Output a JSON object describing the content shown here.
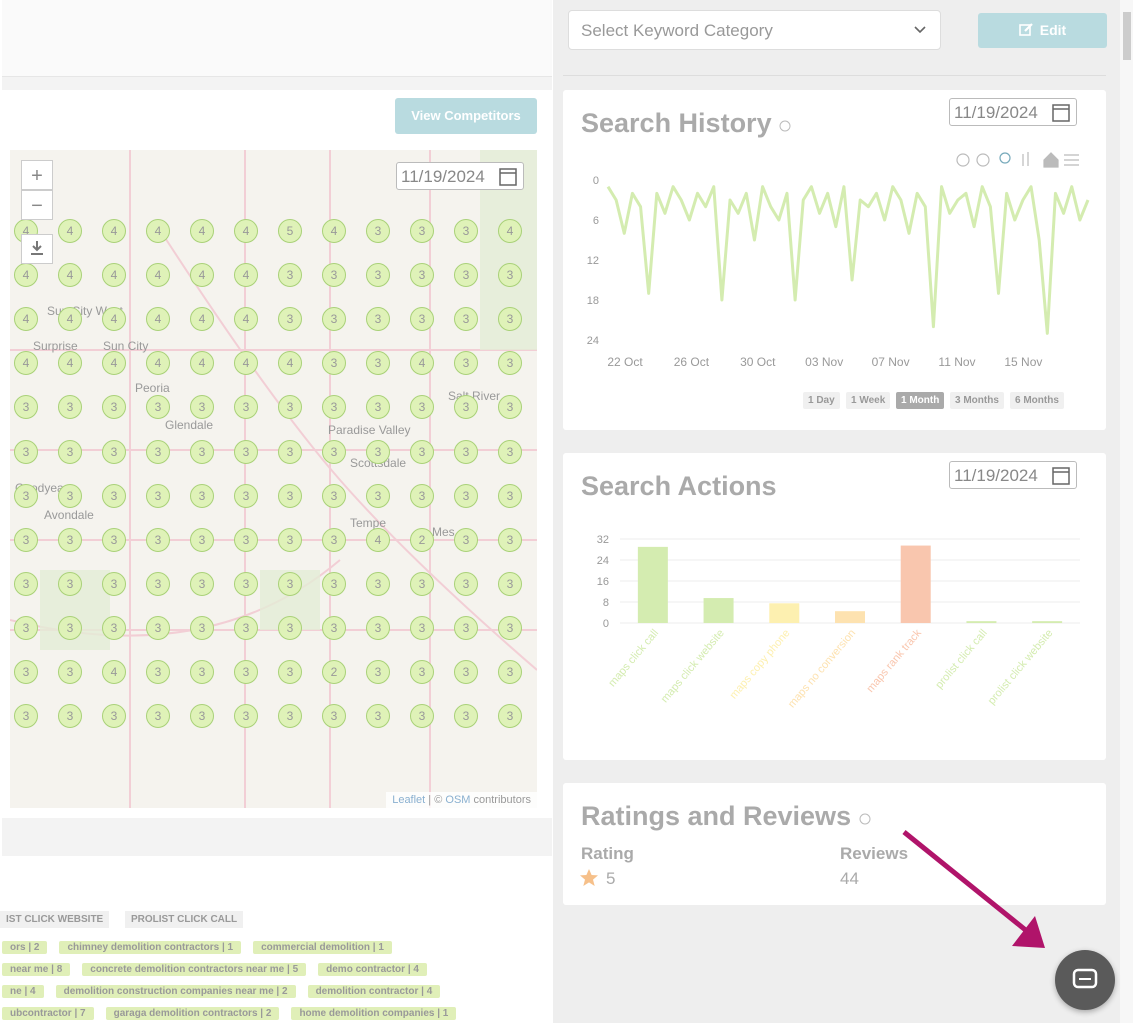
{
  "header": {
    "category_select": "Select Keyword Category",
    "edit_button": "Edit"
  },
  "map_panel": {
    "competitors_button": "View Competitors",
    "date": "11/19/2024",
    "zoom_in": "+",
    "zoom_out": "−",
    "places": [
      "Sun City West",
      "Surprise",
      "Sun City",
      "Peoria",
      "Glendale",
      "Paradise Valley",
      "Scottsdale",
      "Goodyear",
      "Avondale",
      "Tempe",
      "Mes",
      "Salt River"
    ],
    "grid": [
      [
        4,
        4,
        4,
        4,
        4,
        4,
        5,
        4,
        3,
        3,
        3,
        4
      ],
      [
        4,
        4,
        4,
        4,
        4,
        4,
        3,
        3,
        3,
        3,
        3,
        3
      ],
      [
        4,
        4,
        4,
        4,
        4,
        4,
        3,
        3,
        3,
        3,
        3,
        3
      ],
      [
        4,
        4,
        4,
        4,
        4,
        4,
        4,
        3,
        3,
        4,
        3,
        3
      ],
      [
        3,
        3,
        3,
        3,
        3,
        3,
        3,
        3,
        3,
        3,
        3,
        3
      ],
      [
        3,
        3,
        3,
        3,
        3,
        3,
        3,
        3,
        3,
        3,
        3,
        3
      ],
      [
        3,
        3,
        3,
        3,
        3,
        3,
        3,
        3,
        3,
        3,
        3,
        3
      ],
      [
        3,
        3,
        3,
        3,
        3,
        3,
        3,
        3,
        4,
        2,
        3,
        3
      ],
      [
        3,
        3,
        3,
        3,
        3,
        3,
        3,
        3,
        3,
        3,
        3,
        3
      ],
      [
        3,
        3,
        3,
        3,
        3,
        3,
        3,
        3,
        3,
        3,
        3,
        3
      ],
      [
        3,
        3,
        4,
        3,
        3,
        3,
        3,
        2,
        3,
        3,
        3,
        3
      ],
      [
        3,
        3,
        3,
        3,
        3,
        3,
        3,
        3,
        3,
        3,
        3,
        3
      ]
    ],
    "attribution": {
      "leaflet": "Leaflet",
      "separator": "| ©",
      "osm": "OSM",
      "suffix": "contributors"
    }
  },
  "search_history": {
    "type": "line",
    "title": "Search History",
    "date": "11/19/2024",
    "ylim": [
      0,
      24
    ],
    "yticks": [
      0,
      6,
      12,
      18,
      24
    ],
    "y_inverted": true,
    "categories": [
      "22 Oct",
      "26 Oct",
      "30 Oct",
      "03 Nov",
      "07 Nov",
      "11 Nov",
      "15 Nov"
    ],
    "series": [
      {
        "color": "#d4ecb0",
        "values": [
          1,
          3,
          8,
          2,
          4,
          17,
          2,
          5,
          1,
          3,
          6,
          2,
          4,
          1,
          18,
          3,
          5,
          2,
          9,
          1,
          4,
          6,
          2,
          18,
          3,
          1,
          5,
          2,
          7,
          1,
          15,
          3,
          4,
          2,
          6,
          1,
          3,
          8,
          2,
          4,
          22,
          1,
          5,
          3,
          2,
          7,
          1,
          4,
          17,
          2,
          6,
          3,
          1,
          9,
          23,
          2,
          5,
          1,
          6,
          3
        ]
      }
    ],
    "ranges": [
      {
        "label": "1 Day",
        "active": false
      },
      {
        "label": "1 Week",
        "active": false
      },
      {
        "label": "1 Month",
        "active": true
      },
      {
        "label": "3 Months",
        "active": false
      },
      {
        "label": "6 Months",
        "active": false
      }
    ]
  },
  "search_actions": {
    "type": "bar",
    "title": "Search Actions",
    "date": "11/19/2024",
    "ylim": [
      0,
      32
    ],
    "yticks": [
      0,
      8,
      16,
      24,
      32
    ],
    "grid": true,
    "categories": [
      "maps click call",
      "maps click website",
      "maps copy phone",
      "maps no conversion",
      "maps rank track",
      "prolist click call",
      "prolist click website"
    ],
    "values": [
      29,
      9.5,
      7.5,
      4.5,
      29.5,
      0.7,
      0.7
    ],
    "colors": [
      "#d4ecb0",
      "#d4ecb0",
      "#fdf0b0",
      "#fde2b0",
      "#f9c6ae",
      "#d4ecb0",
      "#d4ecb0"
    ]
  },
  "ratings": {
    "title": "Ratings and Reviews",
    "rating_label": "Rating",
    "rating": 5,
    "reviews_label": "Reviews",
    "reviews": 44
  },
  "keywords": {
    "filters": [
      "IST CLICK WEBSITE",
      "PROLIST CLICK CALL"
    ],
    "chips": [
      [
        "ors | 2",
        "chimney demolition contractors | 1",
        "commercial demolition | 1"
      ],
      [
        "near me | 8",
        "concrete demolition contractors near me | 5",
        "demo contractor | 4"
      ],
      [
        "ne | 4",
        "demolition construction companies near me | 2",
        "demolition contractor | 4"
      ],
      [
        "ubcontractor | 7",
        "garaga demolition contractors | 2",
        "home demolition companies | 1"
      ]
    ]
  }
}
